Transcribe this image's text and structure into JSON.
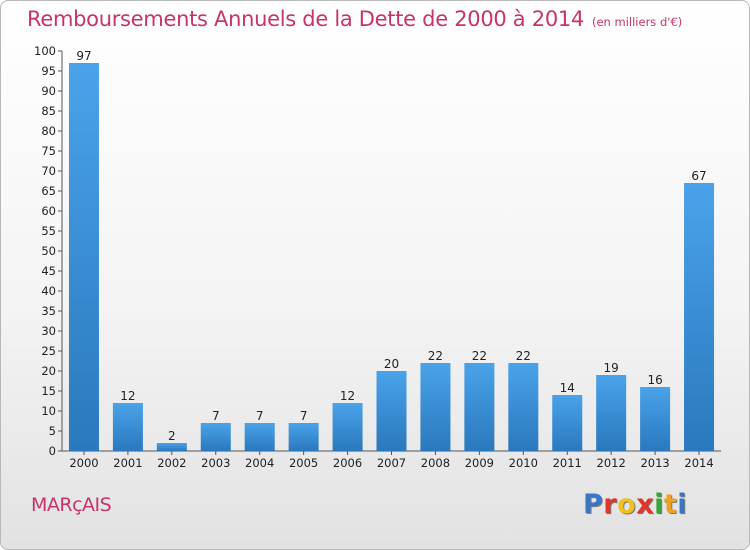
{
  "header": {
    "title": "Remboursements Annuels de la Dette de 2000 à 2014",
    "subtitle": "(en milliers d'€)"
  },
  "footer": {
    "city": "MARçAIS",
    "logo_letters": [
      {
        "char": "P",
        "color": "#3a76c6"
      },
      {
        "char": "r",
        "color": "#e3342b"
      },
      {
        "char": "o",
        "color": "#f0c020"
      },
      {
        "char": "x",
        "color": "#e3342b"
      },
      {
        "char": "i",
        "color": "#3aa33a"
      },
      {
        "char": "t",
        "color": "#f0a020"
      },
      {
        "char": "i",
        "color": "#3a76c6"
      }
    ]
  },
  "chart_data": {
    "type": "bar",
    "title": "Remboursements Annuels de la Dette de 2000 à 2014",
    "subtitle": "(en milliers d'€)",
    "xlabel": "",
    "ylabel": "",
    "categories": [
      "2000",
      "2001",
      "2002",
      "2003",
      "2004",
      "2005",
      "2006",
      "2007",
      "2008",
      "2009",
      "2010",
      "2011",
      "2012",
      "2013",
      "2014"
    ],
    "values": [
      97,
      12,
      2,
      7,
      7,
      7,
      12,
      20,
      22,
      22,
      22,
      14,
      19,
      16,
      67
    ],
    "ylim": [
      0,
      100
    ],
    "ytick_step": 5,
    "grid": false,
    "bar_color": "#3a8fd8"
  }
}
